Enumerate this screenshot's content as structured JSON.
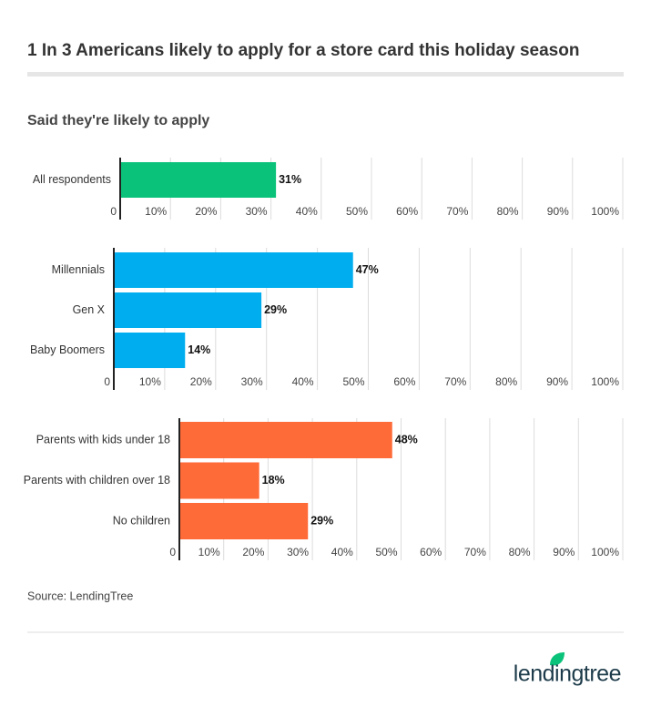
{
  "header": {
    "title": "1 In 3 Americans likely to apply for a store card this holiday season",
    "subtitle": "Said they're likely to apply"
  },
  "chart_data": [
    {
      "type": "bar",
      "orientation": "horizontal",
      "categories": [
        "All respondents"
      ],
      "values": [
        31
      ],
      "value_labels": [
        "31%"
      ],
      "color": "#0bc27a",
      "xlim": [
        0,
        100
      ],
      "xticks": [
        0,
        {
          "value": 10,
          "label": "10%"
        },
        {
          "value": 20,
          "label": "20%"
        },
        {
          "value": 30,
          "label": "30%"
        },
        {
          "value": 40,
          "label": "40%"
        },
        {
          "value": 50,
          "label": "50%"
        },
        {
          "value": 60,
          "label": "60%"
        },
        {
          "value": 70,
          "label": "70%"
        },
        {
          "value": 80,
          "label": "80%"
        },
        {
          "value": 90,
          "label": "90%"
        },
        {
          "value": 100,
          "label": "100%"
        }
      ],
      "grid": true
    },
    {
      "type": "bar",
      "orientation": "horizontal",
      "categories": [
        "Millennials",
        "Gen X",
        "Baby Boomers"
      ],
      "values": [
        47,
        29,
        14
      ],
      "value_labels": [
        "47%",
        "29%",
        "14%"
      ],
      "color": "#00aeef",
      "xlim": [
        0,
        100
      ],
      "xticks": [
        0,
        {
          "value": 10,
          "label": "10%"
        },
        {
          "value": 20,
          "label": "20%"
        },
        {
          "value": 30,
          "label": "30%"
        },
        {
          "value": 40,
          "label": "40%"
        },
        {
          "value": 50,
          "label": "50%"
        },
        {
          "value": 60,
          "label": "60%"
        },
        {
          "value": 70,
          "label": "70%"
        },
        {
          "value": 80,
          "label": "80%"
        },
        {
          "value": 90,
          "label": "90%"
        },
        {
          "value": 100,
          "label": "100%"
        }
      ],
      "grid": true
    },
    {
      "type": "bar",
      "orientation": "horizontal",
      "categories": [
        "Parents with kids under 18",
        "Parents with children over 18",
        "No children"
      ],
      "values": [
        48,
        18,
        29
      ],
      "value_labels": [
        "48%",
        "18%",
        "29%"
      ],
      "color": "#ff6a39",
      "xlim": [
        0,
        100
      ],
      "xticks": [
        0,
        {
          "value": 10,
          "label": "10%"
        },
        {
          "value": 20,
          "label": "20%"
        },
        {
          "value": 30,
          "label": "30%"
        },
        {
          "value": 40,
          "label": "40%"
        },
        {
          "value": 50,
          "label": "50%"
        },
        {
          "value": 60,
          "label": "60%"
        },
        {
          "value": 70,
          "label": "70%"
        },
        {
          "value": 80,
          "label": "80%"
        },
        {
          "value": 90,
          "label": "90%"
        },
        {
          "value": 100,
          "label": "100%"
        }
      ],
      "grid": true
    }
  ],
  "footer": {
    "source": "Source: LendingTree",
    "logo": "lendingtree"
  }
}
